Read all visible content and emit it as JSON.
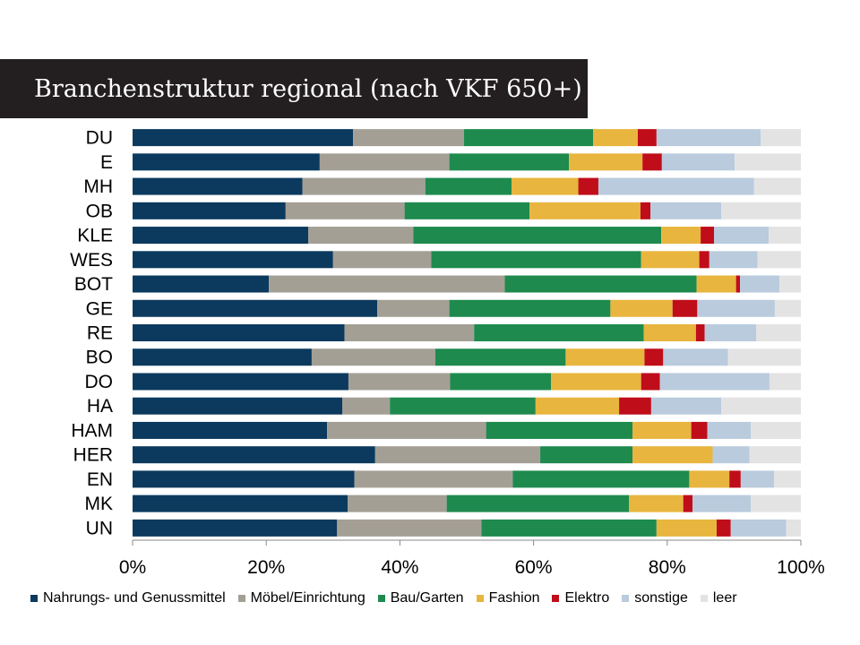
{
  "chart_data": {
    "type": "bar",
    "orientation": "horizontal",
    "stacked": "percent",
    "title": "Branchenstruktur regional (nach VKF 650+)",
    "categories": [
      "DU",
      "E",
      "MH",
      "OB",
      "KLE",
      "WES",
      "BOT",
      "GE",
      "RE",
      "BO",
      "DO",
      "HA",
      "HAM",
      "HER",
      "EN",
      "MK",
      "UN"
    ],
    "xlim": [
      0,
      100
    ],
    "xticks": [
      "0%",
      "20%",
      "40%",
      "60%",
      "80%",
      "100%"
    ],
    "legend_position": "bottom",
    "grid": false,
    "series": [
      {
        "name": "Nahrungs- und Genussmittel",
        "color": "#0b3a5e",
        "values": [
          33.0,
          28.0,
          25.4,
          22.9,
          26.3,
          30.0,
          20.4,
          36.6,
          31.7,
          26.8,
          32.3,
          31.4,
          29.1,
          36.3,
          33.2,
          32.2,
          30.6
        ]
      },
      {
        "name": "Möbel/Einrichtung",
        "color": "#a49f95",
        "values": [
          16.6,
          19.4,
          18.4,
          17.8,
          15.7,
          14.7,
          35.3,
          10.8,
          19.4,
          18.5,
          15.2,
          7.1,
          23.8,
          24.7,
          23.7,
          14.8,
          21.6
        ]
      },
      {
        "name": "Bau/Garten",
        "color": "#1e8a4e",
        "values": [
          19.3,
          17.9,
          12.9,
          18.7,
          37.1,
          31.4,
          28.7,
          24.1,
          25.4,
          19.5,
          15.1,
          21.8,
          21.9,
          13.8,
          26.4,
          27.3,
          26.2
        ]
      },
      {
        "name": "Fashion",
        "color": "#e8b53e",
        "values": [
          6.7,
          11.0,
          10.0,
          16.6,
          5.9,
          8.7,
          5.9,
          9.3,
          7.8,
          11.8,
          13.5,
          12.5,
          8.8,
          12.0,
          6.0,
          8.1,
          9.0
        ]
      },
      {
        "name": "Elektro",
        "color": "#c00d1a",
        "values": [
          2.8,
          2.9,
          3.0,
          1.5,
          2.0,
          1.5,
          0.6,
          3.7,
          1.3,
          2.8,
          2.8,
          4.8,
          2.4,
          0.0,
          1.7,
          1.4,
          2.1
        ]
      },
      {
        "name": "sonstige",
        "color": "#b9cbdd",
        "values": [
          15.6,
          10.9,
          23.3,
          10.6,
          8.2,
          7.2,
          5.9,
          11.6,
          7.7,
          9.7,
          16.4,
          10.5,
          6.5,
          5.5,
          5.0,
          8.7,
          8.3
        ]
      },
      {
        "name": "leer",
        "color": "#e4e3e3",
        "values": [
          6.0,
          9.9,
          7.0,
          11.9,
          4.8,
          6.5,
          3.2,
          3.9,
          6.7,
          10.9,
          4.7,
          11.9,
          7.5,
          7.7,
          4.0,
          7.5,
          2.2
        ]
      }
    ]
  }
}
